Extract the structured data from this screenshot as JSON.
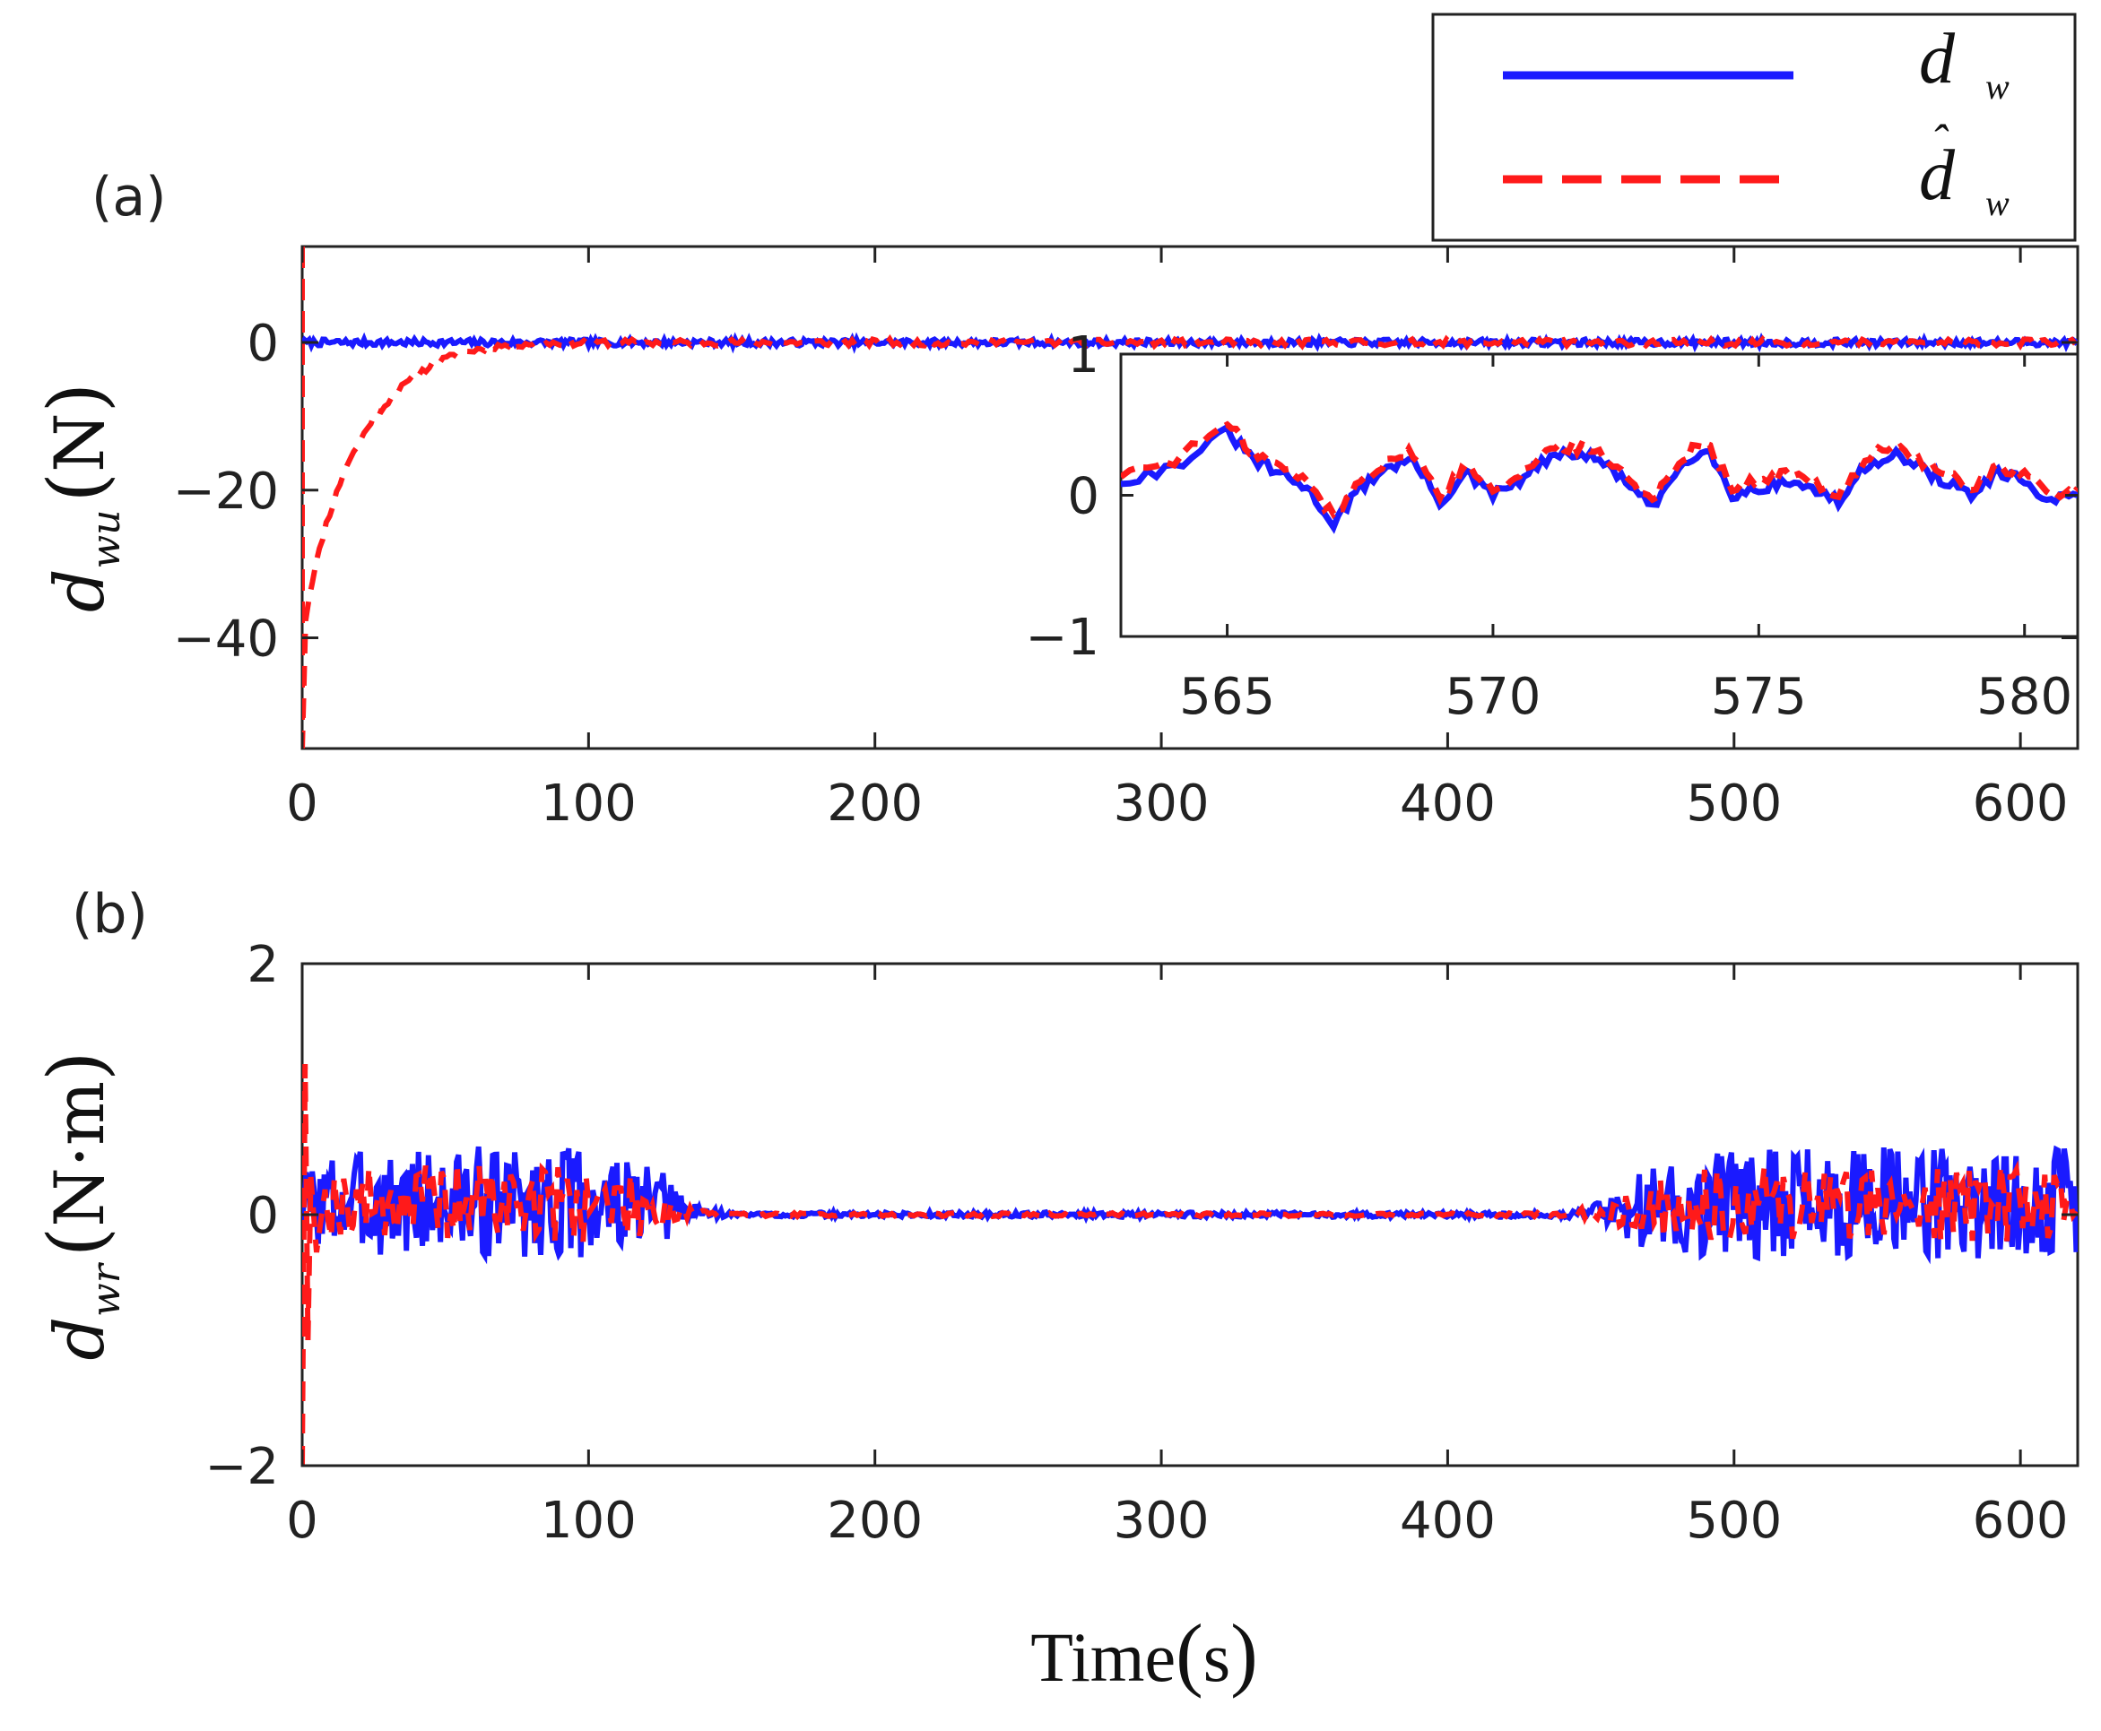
{
  "colors": {
    "true_series": "#1a1aff",
    "est_series": "#ff1a1a",
    "axis": "#222222"
  },
  "legend": {
    "entries": [
      {
        "base": "d",
        "hat": "",
        "sub": "w",
        "style": "solid",
        "color": "#1a1aff"
      },
      {
        "base": "d",
        "hat": "ˆ",
        "sub": "w",
        "style": "dashed",
        "color": "#ff1a1a"
      }
    ]
  },
  "xlabel": {
    "text": "Time",
    "unit_open": "(",
    "unit": "s",
    "unit_close": ")"
  },
  "chart_data": [
    {
      "type": "line",
      "panel_label": "(a)",
      "ylabel": {
        "base": "d",
        "sub": "wu",
        "open": "(",
        "unit": "N",
        "close": ")"
      },
      "xlim": [
        0,
        620
      ],
      "ylim": [
        -55,
        13
      ],
      "xticks": [
        0,
        100,
        200,
        300,
        400,
        500,
        600
      ],
      "yticks": [
        0,
        -20,
        -40
      ],
      "ytick_labels": [
        "0",
        "−20",
        "−40"
      ],
      "series": [
        {
          "name": "d_w",
          "style": "solid",
          "description": "Near-zero disturbance, ~±0.5 N noise throughout"
        },
        {
          "name": "d̂_w",
          "style": "dashed",
          "points": [
            [
              0,
              -55
            ],
            [
              1,
              -38
            ],
            [
              3,
              -33
            ],
            [
              8,
              -25
            ],
            [
              15,
              -17
            ],
            [
              25,
              -10
            ],
            [
              35,
              -6
            ],
            [
              45,
              -3
            ],
            [
              55,
              -1.5
            ],
            [
              65,
              -0.6
            ],
            [
              80,
              -0.1
            ],
            [
              100,
              0
            ]
          ],
          "description": "Starts at -55, converges exponentially to d_w by ~80 s"
        }
      ],
      "inset": {
        "xlim": [
          563,
          581
        ],
        "ylim": [
          -1,
          1
        ],
        "xticks": [
          565,
          570,
          575,
          580
        ],
        "yticks": [
          1,
          0,
          -1
        ],
        "ytick_labels": [
          "1",
          "0",
          "−1"
        ],
        "series": [
          {
            "name": "d_w",
            "x": [
              563,
              564,
              565,
              565.5,
              566,
              566.5,
              567,
              567.5,
              568,
              568.5,
              569,
              569.5,
              570,
              570.5,
              571,
              571.5,
              572,
              572.5,
              573,
              573.5,
              574,
              574.5,
              575,
              575.5,
              576,
              576.5,
              577,
              577.5,
              578,
              578.5,
              579,
              579.5,
              580,
              580.5,
              581
            ],
            "y": [
              0.1,
              0.2,
              0.45,
              0.25,
              0.15,
              0.05,
              -0.2,
              0.05,
              0.2,
              0.25,
              -0.05,
              0.15,
              0.0,
              0.1,
              0.25,
              0.3,
              0.25,
              0.1,
              -0.1,
              0.2,
              0.35,
              0.0,
              0.05,
              0.1,
              0.05,
              -0.05,
              0.2,
              0.3,
              0.2,
              0.1,
              0.0,
              0.15,
              0.1,
              -0.05,
              0.0
            ]
          },
          {
            "name": "d̂_w",
            "x": [
              563,
              564,
              565,
              565.5,
              566,
              566.5,
              567,
              567.5,
              568,
              568.5,
              569,
              569.5,
              570,
              570.5,
              571,
              571.5,
              572,
              572.5,
              573,
              573.5,
              574,
              574.5,
              575,
              575.5,
              576,
              576.5,
              577,
              577.5,
              578,
              578.5,
              579,
              579.5,
              580,
              580.5,
              581
            ],
            "y": [
              0.15,
              0.25,
              0.5,
              0.3,
              0.2,
              0.1,
              -0.15,
              0.1,
              0.25,
              0.3,
              0.0,
              0.2,
              0.05,
              0.15,
              0.3,
              0.35,
              0.3,
              0.15,
              -0.05,
              0.25,
              0.4,
              0.05,
              0.1,
              0.15,
              0.1,
              0.0,
              0.25,
              0.35,
              0.25,
              0.15,
              0.05,
              0.2,
              0.15,
              0.0,
              0.05
            ]
          }
        ]
      }
    },
    {
      "type": "line",
      "panel_label": "(b)",
      "ylabel": {
        "base": "d",
        "sub": "wr",
        "open": "(",
        "unit": "N·m",
        "close": ")"
      },
      "xlim": [
        0,
        620
      ],
      "ylim": [
        -2,
        2
      ],
      "xticks": [
        0,
        100,
        200,
        300,
        400,
        500,
        600
      ],
      "yticks": [
        2,
        0,
        -2
      ],
      "ytick_labels": [
        "2",
        "0",
        "−2"
      ],
      "series": [
        {
          "name": "d_w",
          "style": "solid",
          "envelope": [
            [
              0,
              0.3
            ],
            [
              10,
              0.4
            ],
            [
              50,
              0.45
            ],
            [
              100,
              0.45
            ],
            [
              125,
              0.3
            ],
            [
              140,
              0.05
            ],
            [
              150,
              0.02
            ],
            [
              440,
              0.02
            ],
            [
              455,
              0.1
            ],
            [
              470,
              0.35
            ],
            [
              500,
              0.45
            ],
            [
              620,
              0.45
            ]
          ],
          "center": [
            [
              0,
              0.1
            ],
            [
              100,
              0.1
            ],
            [
              150,
              0
            ],
            [
              440,
              0
            ],
            [
              500,
              0.1
            ],
            [
              620,
              0.1
            ]
          ],
          "description": "Noisy oscillation ~±0.45 for t<140 and t>450, near zero between"
        },
        {
          "name": "d̂_w",
          "style": "dashed",
          "transient": [
            [
              0,
              -2
            ],
            [
              1,
              1.2
            ],
            [
              2,
              -1
            ],
            [
              3,
              0.3
            ],
            [
              5,
              -0.3
            ],
            [
              8,
              0.2
            ]
          ],
          "description": "Initial spike from -2 to 1.2, then tracks d_w"
        }
      ]
    }
  ]
}
